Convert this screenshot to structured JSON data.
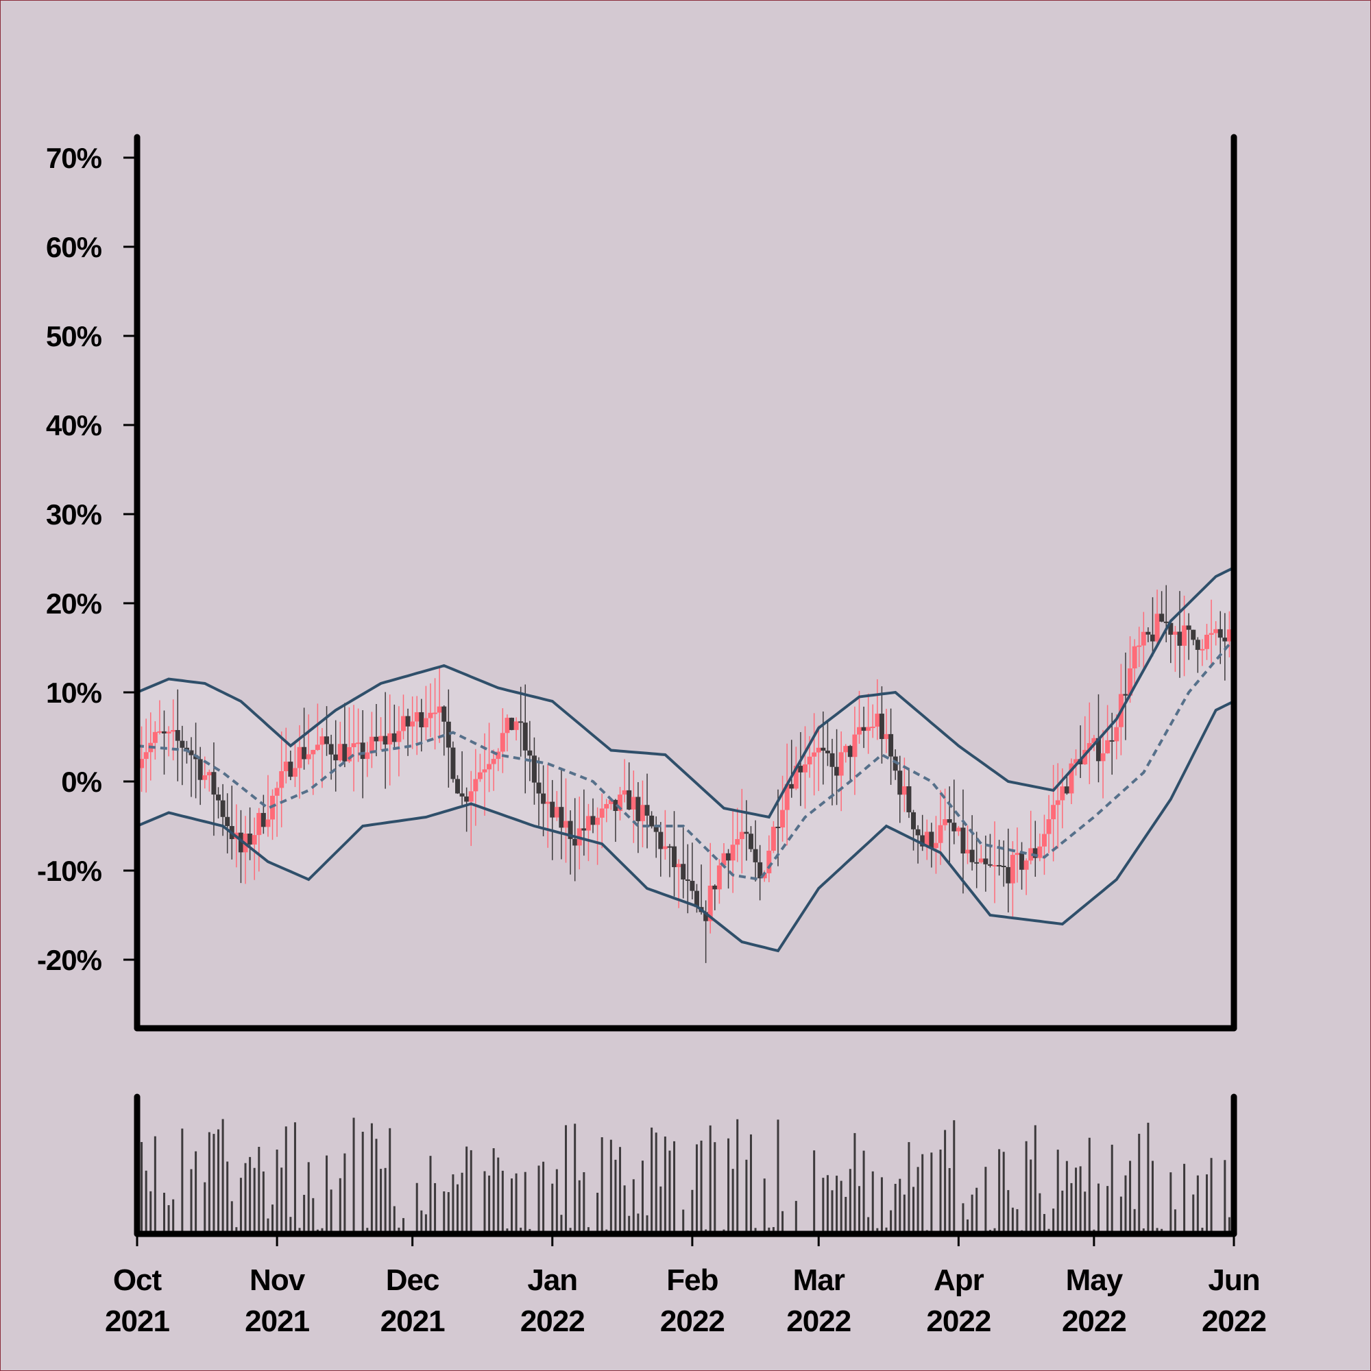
{
  "chart_data": {
    "type": "candlestick",
    "title": "",
    "xlabel": "",
    "ylabel": "",
    "ylim": [
      -27,
      72
    ],
    "yticks": [
      "70%",
      "60%",
      "50%",
      "40%",
      "30%",
      "20%",
      "10%",
      "0%",
      "-10%",
      "-20%"
    ],
    "ytick_values": [
      70,
      60,
      50,
      40,
      30,
      20,
      10,
      0,
      -10,
      -20
    ],
    "xrange": [
      "2021-10-01",
      "2022-06-01"
    ],
    "xticks": [
      {
        "date": "2021-10-01",
        "month": "Oct",
        "year": "2021"
      },
      {
        "date": "2021-11-01",
        "month": "Nov",
        "year": "2021"
      },
      {
        "date": "2021-12-01",
        "month": "Dec",
        "year": "2021"
      },
      {
        "date": "2022-01-01",
        "month": "Jan",
        "year": "2022"
      },
      {
        "date": "2022-02-01",
        "month": "Feb",
        "year": "2022"
      },
      {
        "date": "2022-03-01",
        "month": "Mar",
        "year": "2022"
      },
      {
        "date": "2022-04-01",
        "month": "Apr",
        "year": "2022"
      },
      {
        "date": "2022-05-01",
        "month": "May",
        "year": "2022"
      },
      {
        "date": "2022-06-01",
        "month": "Jun",
        "year": "2022"
      }
    ],
    "close_trend": [
      [
        "2021-10-01",
        3
      ],
      [
        "2021-10-06",
        5
      ],
      [
        "2021-10-12",
        4
      ],
      [
        "2021-10-18",
        -1
      ],
      [
        "2021-10-24",
        -8
      ],
      [
        "2021-10-30",
        -3
      ],
      [
        "2021-11-05",
        3
      ],
      [
        "2021-11-12",
        4
      ],
      [
        "2021-11-19",
        3
      ],
      [
        "2021-11-26",
        5
      ],
      [
        "2021-12-02",
        7
      ],
      [
        "2021-12-06",
        9
      ],
      [
        "2021-12-12",
        -2
      ],
      [
        "2021-12-18",
        3
      ],
      [
        "2021-12-24",
        7
      ],
      [
        "2021-12-30",
        -3
      ],
      [
        "2022-01-06",
        -6
      ],
      [
        "2022-01-12",
        -4
      ],
      [
        "2022-01-18",
        -2
      ],
      [
        "2022-01-24",
        -6
      ],
      [
        "2022-01-30",
        -11
      ],
      [
        "2022-02-03",
        -16
      ],
      [
        "2022-02-08",
        -8
      ],
      [
        "2022-02-12",
        -6
      ],
      [
        "2022-02-16",
        -11
      ],
      [
        "2022-02-22",
        0
      ],
      [
        "2022-02-28",
        4
      ],
      [
        "2022-03-04",
        1
      ],
      [
        "2022-03-10",
        5
      ],
      [
        "2022-03-14",
        7
      ],
      [
        "2022-03-18",
        1
      ],
      [
        "2022-03-24",
        -7
      ],
      [
        "2022-03-30",
        -5
      ],
      [
        "2022-04-05",
        -10
      ],
      [
        "2022-04-12",
        -10
      ],
      [
        "2022-04-18",
        -8
      ],
      [
        "2022-04-22",
        -3
      ],
      [
        "2022-04-28",
        3
      ],
      [
        "2022-05-04",
        4
      ],
      [
        "2022-05-10",
        14
      ],
      [
        "2022-05-16",
        18
      ],
      [
        "2022-05-22",
        16
      ],
      [
        "2022-05-28",
        16
      ],
      [
        "2022-06-01",
        16
      ]
    ],
    "sma": [
      [
        "2021-10-01",
        4
      ],
      [
        "2021-10-12",
        3.5
      ],
      [
        "2021-10-20",
        1
      ],
      [
        "2021-10-30",
        -3
      ],
      [
        "2021-11-08",
        -1
      ],
      [
        "2021-11-18",
        3
      ],
      [
        "2021-12-01",
        4
      ],
      [
        "2021-12-10",
        5.5
      ],
      [
        "2021-12-20",
        3
      ],
      [
        "2021-12-31",
        2
      ],
      [
        "2022-01-10",
        0
      ],
      [
        "2022-01-20",
        -5
      ],
      [
        "2022-01-30",
        -5
      ],
      [
        "2022-02-10",
        -10.5
      ],
      [
        "2022-02-16",
        -11
      ],
      [
        "2022-02-26",
        -4
      ],
      [
        "2022-03-08",
        0
      ],
      [
        "2022-03-15",
        3
      ],
      [
        "2022-03-26",
        0
      ],
      [
        "2022-04-06",
        -7
      ],
      [
        "2022-04-20",
        -8.5
      ],
      [
        "2022-05-01",
        -4
      ],
      [
        "2022-05-12",
        1
      ],
      [
        "2022-05-22",
        10
      ],
      [
        "2022-06-01",
        16
      ]
    ],
    "upper_band": [
      [
        "2021-10-01",
        10
      ],
      [
        "2021-10-08",
        11.5
      ],
      [
        "2021-10-16",
        11
      ],
      [
        "2021-10-24",
        9
      ],
      [
        "2021-11-04",
        4
      ],
      [
        "2021-11-14",
        8
      ],
      [
        "2021-11-24",
        11
      ],
      [
        "2021-12-08",
        13
      ],
      [
        "2021-12-20",
        10.5
      ],
      [
        "2022-01-01",
        9
      ],
      [
        "2022-01-14",
        3.5
      ],
      [
        "2022-01-26",
        3
      ],
      [
        "2022-02-08",
        -3
      ],
      [
        "2022-02-18",
        -4
      ],
      [
        "2022-03-01",
        6
      ],
      [
        "2022-03-10",
        9.5
      ],
      [
        "2022-03-18",
        10
      ],
      [
        "2022-04-01",
        4
      ],
      [
        "2022-04-12",
        0
      ],
      [
        "2022-04-22",
        -1
      ],
      [
        "2022-05-06",
        7
      ],
      [
        "2022-05-18",
        18
      ],
      [
        "2022-05-28",
        23
      ],
      [
        "2022-06-01",
        24
      ]
    ],
    "lower_band": [
      [
        "2021-10-01",
        -5
      ],
      [
        "2021-10-08",
        -3.5
      ],
      [
        "2021-10-20",
        -5
      ],
      [
        "2021-10-30",
        -9
      ],
      [
        "2021-11-08",
        -11
      ],
      [
        "2021-11-20",
        -5
      ],
      [
        "2021-12-04",
        -4
      ],
      [
        "2021-12-14",
        -2.5
      ],
      [
        "2021-12-28",
        -5
      ],
      [
        "2022-01-12",
        -7
      ],
      [
        "2022-01-22",
        -12
      ],
      [
        "2022-02-02",
        -14
      ],
      [
        "2022-02-12",
        -18
      ],
      [
        "2022-02-20",
        -19
      ],
      [
        "2022-03-01",
        -12
      ],
      [
        "2022-03-16",
        -5
      ],
      [
        "2022-03-28",
        -8
      ],
      [
        "2022-04-08",
        -15
      ],
      [
        "2022-04-24",
        -16
      ],
      [
        "2022-05-06",
        -11
      ],
      [
        "2022-05-18",
        -2
      ],
      [
        "2022-05-28",
        8
      ],
      [
        "2022-06-01",
        9
      ]
    ],
    "volume_note": "daily volume bars, unlabeled",
    "colors": {
      "background": "#d4c9d2",
      "band_fill": "#dcd3dc",
      "band_line": "#2f4f6a",
      "sma_line": "#56708a",
      "up_candle": "#ff6b78",
      "down_candle": "#3d3a3c",
      "volume_bar": "#3d3a3c",
      "axis": "#000000"
    }
  }
}
